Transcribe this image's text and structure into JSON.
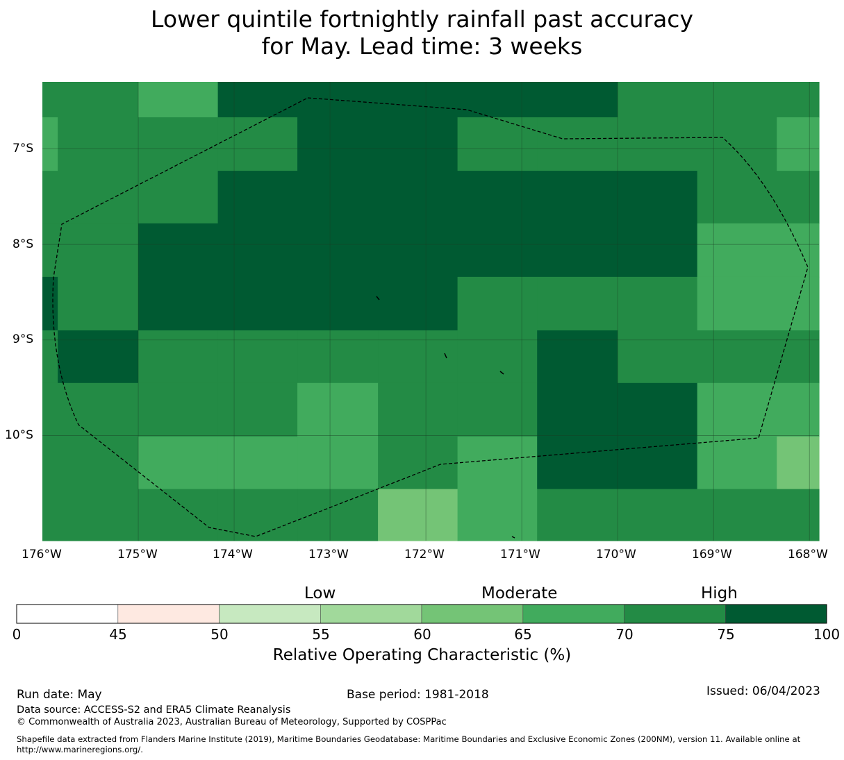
{
  "title": {
    "line1": "Lower quintile fortnightly rainfall past accuracy",
    "line2": "for May. Lead time: 3 weeks"
  },
  "map": {
    "lat_range": [
      -11.1,
      -6.3
    ],
    "lon_range": [
      -176.0,
      -167.9
    ],
    "lat_ticks": [
      "7°S",
      "8°S",
      "9°S",
      "10°S"
    ],
    "lon_ticks": [
      "176°W",
      "175°W",
      "174°W",
      "173°W",
      "172°W",
      "171°W",
      "170°W",
      "169°W",
      "168°W"
    ],
    "grid_lines": true,
    "eez_boundary": "dashed",
    "roc_grid_percent": {
      "col_lon_bounds": [
        -176.0,
        -175.84,
        -175.0,
        -174.17,
        -173.34,
        -172.5,
        -171.67,
        -170.84,
        -170.0,
        -169.17,
        -168.34,
        -167.9
      ],
      "row_lat_bounds": [
        -6.3,
        -6.67,
        -7.23,
        -7.78,
        -8.34,
        -8.9,
        -9.45,
        -10.01,
        -10.56,
        -11.1
      ],
      "values": [
        [
          72,
          72,
          68,
          78,
          78,
          78,
          78,
          78,
          72,
          72,
          72
        ],
        [
          68,
          72,
          72,
          72,
          78,
          78,
          72,
          72,
          72,
          72,
          68
        ],
        [
          72,
          72,
          72,
          78,
          78,
          78,
          78,
          78,
          78,
          72,
          72
        ],
        [
          72,
          72,
          78,
          78,
          78,
          78,
          78,
          78,
          78,
          68,
          68
        ],
        [
          78,
          72,
          78,
          78,
          78,
          78,
          72,
          72,
          72,
          68,
          68
        ],
        [
          72,
          78,
          72,
          72,
          72,
          72,
          72,
          78,
          72,
          72,
          72
        ],
        [
          72,
          72,
          72,
          72,
          68,
          72,
          72,
          78,
          78,
          68,
          68
        ],
        [
          72,
          72,
          68,
          68,
          68,
          72,
          68,
          78,
          78,
          68,
          62
        ],
        [
          72,
          72,
          72,
          72,
          72,
          62,
          68,
          72,
          72,
          72,
          72
        ]
      ]
    }
  },
  "colorbar": {
    "label": "Relative Operating Characteristic (%)",
    "categories": {
      "low": "Low",
      "moderate": "Moderate",
      "high": "High"
    },
    "ticks": [
      "0",
      "45",
      "50",
      "55",
      "60",
      "65",
      "70",
      "75",
      "100"
    ],
    "colors": [
      "#ffffff",
      "#fee9e1",
      "#c7e9c0",
      "#a1d99b",
      "#74c476",
      "#41ab5d",
      "#238b45",
      "#005a32"
    ]
  },
  "footer": {
    "run_date": "Run date: May",
    "base_period": "Base period: 1981-2018",
    "issued": "Issued: 06/04/2023",
    "data_source": "Data source: ACCESS-S2 and ERA5 Climate Reanalysis",
    "copyright": "© Commonwealth of Australia 2023, Australian Bureau of Meteorology, Supported by COSPPac",
    "shapefile_line1": "Shapefile data extracted from Flanders Marine Institute (2019), Maritime Boundaries Geodatabase: Maritime Boundaries and Exclusive Economic Zones (200NM), version 11. Available online at",
    "shapefile_line2": "http://www.marineregions.org/."
  }
}
